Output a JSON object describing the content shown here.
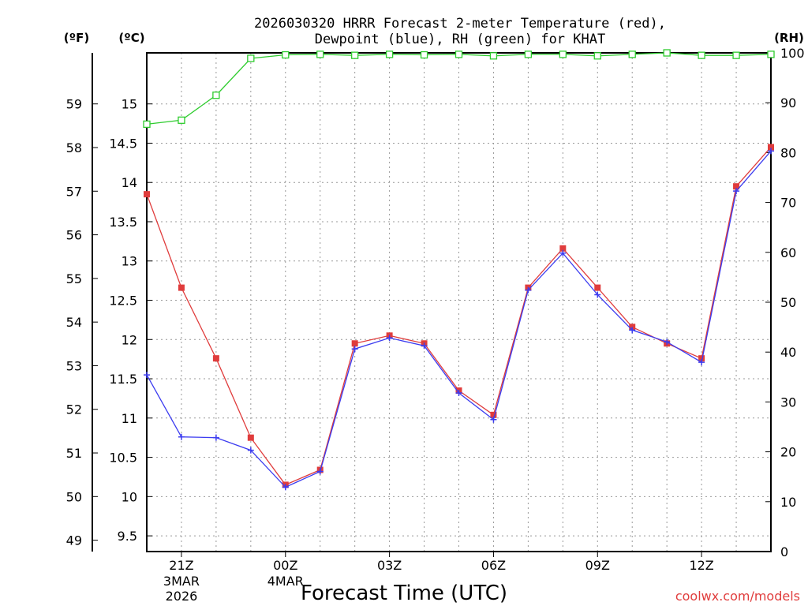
{
  "chart_data": {
    "type": "line",
    "title_line1": "2026030320 HRRR Forecast 2-meter Temperature (red),",
    "title_line2": "Dewpoint (blue), RH (green) for KHAT",
    "unit_f": "(ºF)",
    "unit_c": "(ºC)",
    "unit_rh": "(RH)",
    "xlabel": "Forecast Time (UTC)",
    "credit": "coolwx.com/models",
    "x_ticks": [
      {
        "hour": 1,
        "label": "21Z",
        "sub": [
          "3MAR",
          "2026"
        ]
      },
      {
        "hour": 4,
        "label": "00Z",
        "sub": [
          "4MAR"
        ]
      },
      {
        "hour": 7,
        "label": "03Z",
        "sub": []
      },
      {
        "hour": 10,
        "label": "06Z",
        "sub": []
      },
      {
        "hour": 13,
        "label": "09Z",
        "sub": []
      },
      {
        "hour": 16,
        "label": "12Z",
        "sub": []
      }
    ],
    "x_range": [
      0,
      18
    ],
    "celsius_range": [
      9.3,
      15.65
    ],
    "celsius_ticks": [
      "9.5",
      "10",
      "10.5",
      "11",
      "11.5",
      "12",
      "12.5",
      "13",
      "13.5",
      "14",
      "14.5",
      "15"
    ],
    "fahrenheit_ticks": [
      "49",
      "50",
      "51",
      "52",
      "53",
      "54",
      "55",
      "56",
      "57",
      "58",
      "59"
    ],
    "rh_range": [
      0,
      100
    ],
    "rh_ticks": [
      "0",
      "10",
      "20",
      "30",
      "40",
      "50",
      "60",
      "70",
      "80",
      "90",
      "100"
    ],
    "grid": true,
    "series": [
      {
        "name": "Temperature",
        "unit": "C",
        "color": "#e03c3c",
        "marker": "square",
        "values": [
          13.85,
          12.66,
          11.76,
          10.75,
          10.15,
          10.34,
          11.95,
          12.05,
          11.95,
          11.35,
          11.04,
          12.66,
          13.16,
          12.66,
          12.16,
          11.95,
          11.76,
          13.95,
          14.45
        ]
      },
      {
        "name": "Dewpoint",
        "unit": "C",
        "color": "#3c3cf0",
        "marker": "plus",
        "values": [
          11.55,
          10.76,
          10.75,
          10.59,
          10.12,
          10.32,
          11.88,
          12.02,
          11.92,
          11.32,
          10.98,
          12.63,
          13.1,
          12.57,
          12.12,
          11.97,
          11.71,
          13.89,
          14.4
        ]
      },
      {
        "name": "RH",
        "unit": "%",
        "color": "#2ecc2e",
        "marker": "open-square",
        "values": [
          85.7,
          86.5,
          91.5,
          98.9,
          99.6,
          99.7,
          99.5,
          99.7,
          99.6,
          99.7,
          99.4,
          99.7,
          99.7,
          99.4,
          99.7,
          100,
          99.5,
          99.5,
          99.7
        ]
      }
    ]
  }
}
